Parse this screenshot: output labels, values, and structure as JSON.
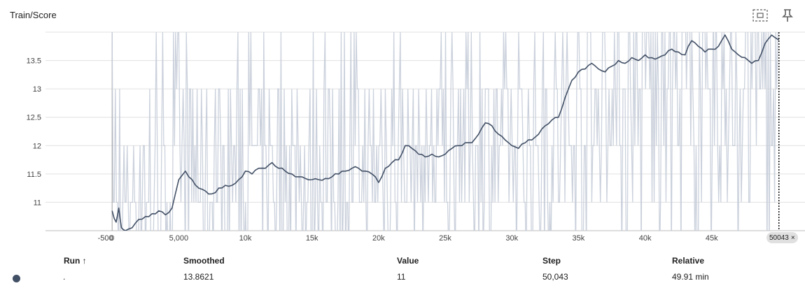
{
  "card": {
    "title": "Train/Score",
    "fit_icon": "fit-domain-icon",
    "pin_icon": "pin-icon"
  },
  "chart_data": {
    "type": "line",
    "title": "Train/Score",
    "xlabel": "",
    "ylabel": "",
    "x_ticks": [
      {
        "value": -500,
        "label": "-500"
      },
      {
        "value": 0,
        "label": "0"
      },
      {
        "value": 5000,
        "label": "5,000"
      },
      {
        "value": 10000,
        "label": "10k"
      },
      {
        "value": 15000,
        "label": "15k"
      },
      {
        "value": 20000,
        "label": "20k"
      },
      {
        "value": 25000,
        "label": "25k"
      },
      {
        "value": 30000,
        "label": "30k"
      },
      {
        "value": 35000,
        "label": "35k"
      },
      {
        "value": 40000,
        "label": "40k"
      },
      {
        "value": 45000,
        "label": "45k"
      }
    ],
    "y_ticks": [
      {
        "value": 11,
        "label": "11"
      },
      {
        "value": 11.5,
        "label": "11.5"
      },
      {
        "value": 12,
        "label": "12"
      },
      {
        "value": 12.5,
        "label": "12.5"
      },
      {
        "value": 13,
        "label": "13"
      },
      {
        "value": 13.5,
        "label": "13.5"
      }
    ],
    "xlim": [
      -5000,
      52000
    ],
    "ylim": [
      10.5,
      14
    ],
    "grid": true,
    "cursor_step": 50043,
    "cursor_label": "50043",
    "series": [
      {
        "color": "#425066",
        "raw_color": "#c5ccd8",
        "raw_values_range": [
          10,
          14
        ],
        "smoothed": [
          [
            0,
            10.85
          ],
          [
            300,
            10.65
          ],
          [
            500,
            10.9
          ],
          [
            700,
            10.55
          ],
          [
            1000,
            10.5
          ],
          [
            1500,
            10.55
          ],
          [
            2000,
            10.7
          ],
          [
            2500,
            10.75
          ],
          [
            3000,
            10.8
          ],
          [
            3500,
            10.85
          ],
          [
            4000,
            10.78
          ],
          [
            4500,
            10.9
          ],
          [
            5000,
            11.4
          ],
          [
            5500,
            11.55
          ],
          [
            6000,
            11.4
          ],
          [
            6500,
            11.25
          ],
          [
            7000,
            11.2
          ],
          [
            7500,
            11.15
          ],
          [
            8000,
            11.25
          ],
          [
            8500,
            11.3
          ],
          [
            9000,
            11.3
          ],
          [
            9500,
            11.4
          ],
          [
            10000,
            11.55
          ],
          [
            10500,
            11.5
          ],
          [
            11000,
            11.6
          ],
          [
            11500,
            11.6
          ],
          [
            12000,
            11.7
          ],
          [
            12500,
            11.6
          ],
          [
            13000,
            11.55
          ],
          [
            13500,
            11.5
          ],
          [
            14000,
            11.45
          ],
          [
            14500,
            11.42
          ],
          [
            15000,
            11.4
          ],
          [
            15500,
            11.4
          ],
          [
            16000,
            11.42
          ],
          [
            16500,
            11.45
          ],
          [
            17000,
            11.5
          ],
          [
            17500,
            11.55
          ],
          [
            18000,
            11.6
          ],
          [
            18500,
            11.6
          ],
          [
            19000,
            11.55
          ],
          [
            19500,
            11.5
          ],
          [
            20000,
            11.35
          ],
          [
            20500,
            11.6
          ],
          [
            21000,
            11.7
          ],
          [
            21500,
            11.75
          ],
          [
            22000,
            12.0
          ],
          [
            22500,
            11.95
          ],
          [
            23000,
            11.85
          ],
          [
            23500,
            11.8
          ],
          [
            24000,
            11.85
          ],
          [
            24500,
            11.8
          ],
          [
            25000,
            11.85
          ],
          [
            25500,
            11.95
          ],
          [
            26000,
            12.0
          ],
          [
            26500,
            12.05
          ],
          [
            27000,
            12.05
          ],
          [
            27500,
            12.2
          ],
          [
            28000,
            12.4
          ],
          [
            28500,
            12.35
          ],
          [
            29000,
            12.2
          ],
          [
            29500,
            12.1
          ],
          [
            30000,
            12.0
          ],
          [
            30500,
            11.95
          ],
          [
            31000,
            12.05
          ],
          [
            31500,
            12.1
          ],
          [
            32000,
            12.2
          ],
          [
            32500,
            12.35
          ],
          [
            33000,
            12.45
          ],
          [
            33500,
            12.5
          ],
          [
            34000,
            12.85
          ],
          [
            34500,
            13.15
          ],
          [
            35000,
            13.3
          ],
          [
            35500,
            13.35
          ],
          [
            36000,
            13.45
          ],
          [
            36500,
            13.35
          ],
          [
            37000,
            13.3
          ],
          [
            37500,
            13.4
          ],
          [
            38000,
            13.5
          ],
          [
            38500,
            13.45
          ],
          [
            39000,
            13.55
          ],
          [
            39500,
            13.5
          ],
          [
            40000,
            13.6
          ],
          [
            40500,
            13.55
          ],
          [
            41000,
            13.55
          ],
          [
            41500,
            13.6
          ],
          [
            42000,
            13.7
          ],
          [
            42500,
            13.65
          ],
          [
            43000,
            13.6
          ],
          [
            43500,
            13.85
          ],
          [
            44000,
            13.75
          ],
          [
            44500,
            13.65
          ],
          [
            45000,
            13.7
          ],
          [
            45500,
            13.75
          ],
          [
            46000,
            13.95
          ],
          [
            46500,
            13.7
          ],
          [
            47000,
            13.6
          ],
          [
            47500,
            13.55
          ],
          [
            48000,
            13.45
          ],
          [
            48500,
            13.5
          ],
          [
            49000,
            13.8
          ],
          [
            49500,
            13.95
          ],
          [
            50043,
            13.8621
          ]
        ]
      }
    ]
  },
  "table": {
    "headers": {
      "run": "Run ↑",
      "smoothed": "Smoothed",
      "value": "Value",
      "step": "Step",
      "relative": "Relative"
    },
    "rows": [
      {
        "run": ".",
        "smoothed": "13.8621",
        "value": "11",
        "step": "50,043",
        "relative": "49.91 min",
        "color": "#425066"
      }
    ]
  }
}
